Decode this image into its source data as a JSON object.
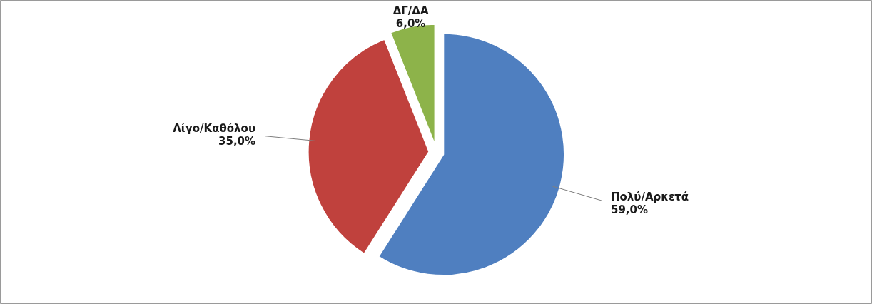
{
  "chart_data": {
    "type": "pie",
    "categories": [
      "Πολύ/Αρκετά",
      "Λίγο/Καθόλου",
      "ΔΓ/ΔΑ"
    ],
    "values": [
      59,
      35,
      6
    ],
    "colors": [
      "#4f7fc0",
      "#c0413d",
      "#8db34a"
    ],
    "value_labels": [
      "59,0%",
      "35,0%",
      "6,0%"
    ]
  }
}
